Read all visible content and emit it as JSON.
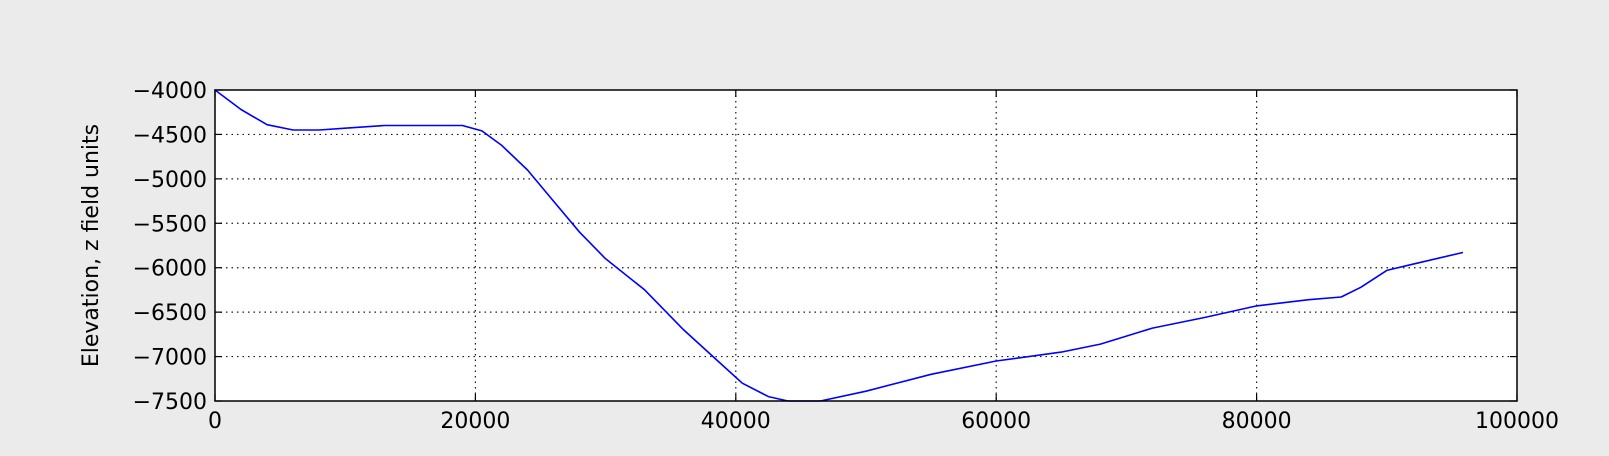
{
  "chart_data": {
    "type": "line",
    "title": "",
    "xlabel": "",
    "ylabel": "Elevation, z field units",
    "xlim": [
      0,
      100000
    ],
    "ylim": [
      -7500,
      -4000
    ],
    "grid": true,
    "legend": "none",
    "x_ticks": [
      0,
      20000,
      40000,
      60000,
      80000,
      100000
    ],
    "x_tick_labels": [
      "0",
      "20000",
      "40000",
      "60000",
      "80000",
      "100000"
    ],
    "y_ticks": [
      -4000,
      -4500,
      -5000,
      -5500,
      -6000,
      -6500,
      -7000,
      -7500
    ],
    "y_tick_labels": [
      "−4000",
      "−4500",
      "−5000",
      "−5500",
      "−6000",
      "−6500",
      "−7000",
      "−7500"
    ],
    "colors": {
      "series": "#0000ff",
      "axes_background": "#ffffff",
      "figure_background": "#ebebeb"
    },
    "series": [
      {
        "x": [
          0,
          2000,
          4000,
          6000,
          8000,
          10000,
          13000,
          16000,
          19000,
          20500,
          22000,
          24000,
          26000,
          28000,
          30000,
          33000,
          36000,
          39000,
          40500,
          42500,
          44000,
          46500,
          50000,
          55000,
          60000,
          65000,
          68000,
          72000,
          76000,
          80000,
          84000,
          86500,
          88000,
          90000,
          92000,
          95800
        ],
        "y": [
          -4000,
          -4220,
          -4390,
          -4450,
          -4450,
          -4430,
          -4400,
          -4400,
          -4400,
          -4460,
          -4620,
          -4900,
          -5250,
          -5600,
          -5900,
          -6250,
          -6700,
          -7100,
          -7300,
          -7450,
          -7500,
          -7500,
          -7390,
          -7200,
          -7050,
          -6950,
          -6860,
          -6680,
          -6560,
          -6430,
          -6360,
          -6330,
          -6220,
          -6030,
          -5960,
          -5830
        ]
      }
    ]
  }
}
